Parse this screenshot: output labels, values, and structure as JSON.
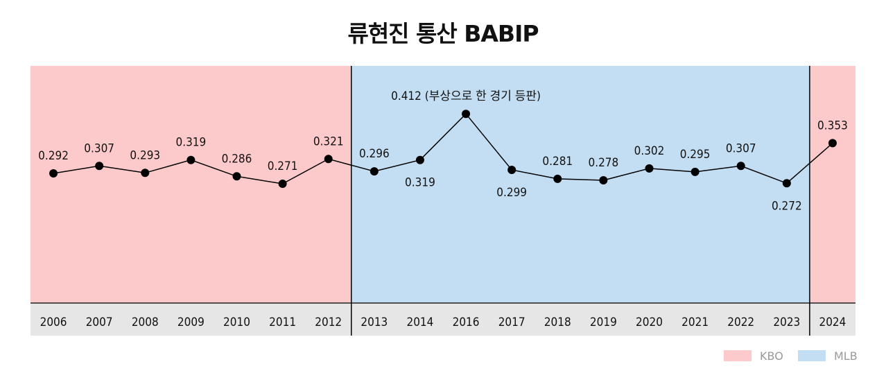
{
  "chart_data": {
    "type": "line",
    "title": "류현진 통산 BABIP",
    "categories": [
      "2006",
      "2007",
      "2008",
      "2009",
      "2010",
      "2011",
      "2012",
      "2013",
      "2014",
      "2016",
      "2017",
      "2018",
      "2019",
      "2020",
      "2021",
      "2022",
      "2023",
      "2024"
    ],
    "values": [
      0.292,
      0.307,
      0.293,
      0.319,
      0.286,
      0.271,
      0.321,
      0.296,
      0.319,
      0.412,
      0.299,
      0.281,
      0.278,
      0.302,
      0.295,
      0.307,
      0.272,
      0.353
    ],
    "data_labels": [
      "0.292",
      "0.307",
      "0.293",
      "0.319",
      "0.286",
      "0.271",
      "0.321",
      "0.296",
      "0.319",
      "0.412 (부상으로 한 경기 등판)",
      "0.299",
      "0.281",
      "0.278",
      "0.302",
      "0.295",
      "0.307",
      "0.272",
      "0.353"
    ],
    "label_position": [
      "above",
      "above",
      "above",
      "above",
      "above",
      "above",
      "above",
      "above",
      "below",
      "above",
      "below",
      "above",
      "above",
      "above",
      "above",
      "above",
      "below",
      "above"
    ],
    "regions": [
      {
        "name": "KBO",
        "from": "2006",
        "to": "2012",
        "color": "#fdcacb"
      },
      {
        "name": "MLB",
        "from": "2013",
        "to": "2023",
        "color": "#c3def3"
      },
      {
        "name": "KBO",
        "from": "2024",
        "to": "2024",
        "color": "#fdcacb"
      }
    ],
    "legend": [
      {
        "name": "KBO",
        "color": "#fdcacb"
      },
      {
        "name": "MLB",
        "color": "#c3def3"
      }
    ],
    "legend_position": "bottom-right",
    "xlabel": "",
    "ylabel": "",
    "grid": false,
    "colors": {
      "line": "#000000",
      "axis_band": "#e6e6e6",
      "separator": "#000000"
    }
  }
}
